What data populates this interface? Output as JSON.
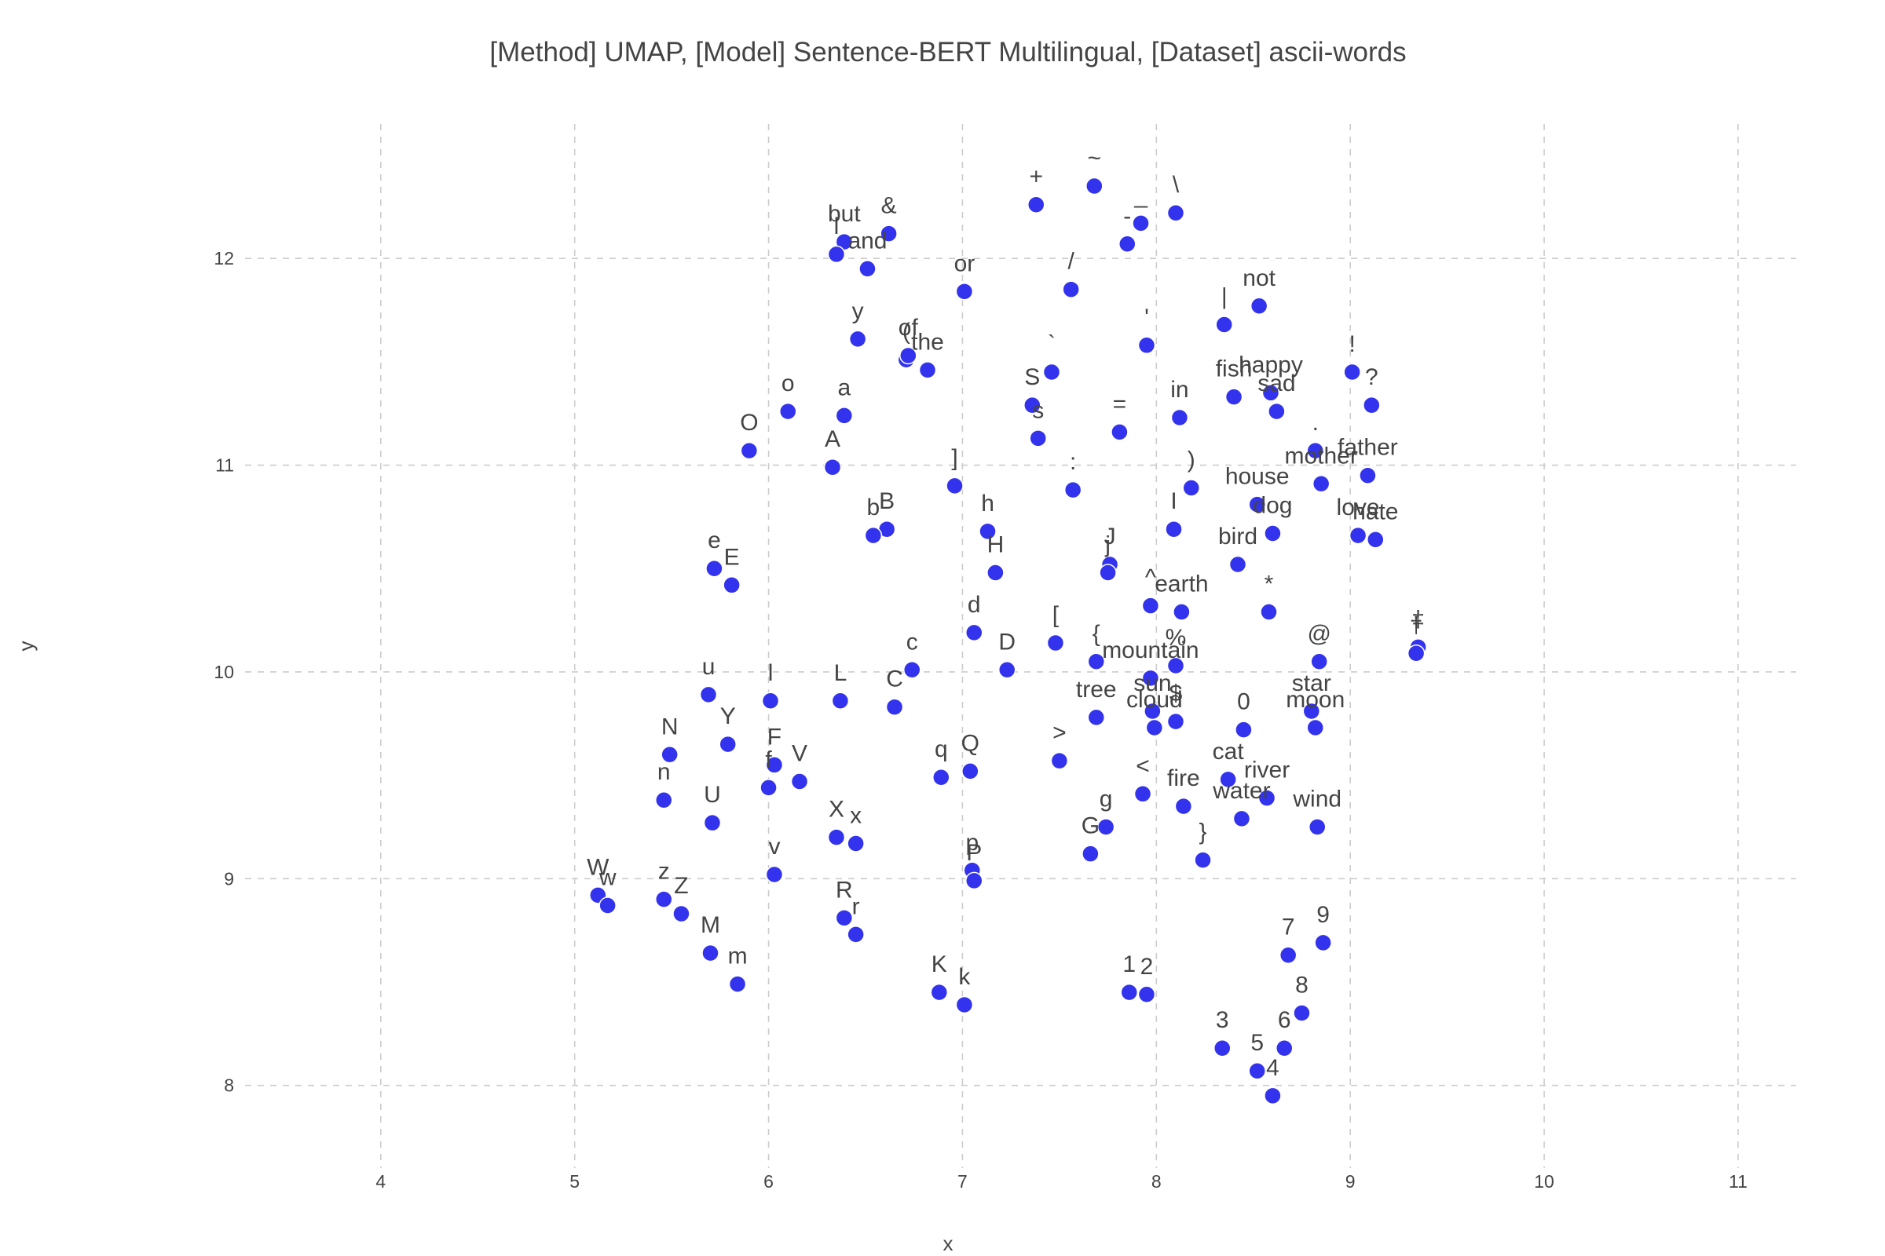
{
  "chart_data": {
    "type": "scatter",
    "title": "[Method] UMAP, [Model] Sentence-BERT Multilingual, [Dataset] ascii-words",
    "xlabel": "x",
    "ylabel": "y",
    "xlim": [
      3.3,
      11.3
    ],
    "ylim": [
      7.6,
      12.65
    ],
    "xticks": [
      4,
      5,
      6,
      7,
      8,
      9,
      10,
      11
    ],
    "yticks": [
      8,
      9,
      10,
      11,
      12
    ],
    "grid": true,
    "marker_color": "#3333ee",
    "points": [
      {
        "label": "~",
        "x": 7.68,
        "y": 12.35
      },
      {
        "label": "+",
        "x": 7.38,
        "y": 12.26
      },
      {
        "label": "\\",
        "x": 8.1,
        "y": 12.22
      },
      {
        "label": "_",
        "x": 7.92,
        "y": 12.17
      },
      {
        "label": "-",
        "x": 7.85,
        "y": 12.07
      },
      {
        "label": "&",
        "x": 6.62,
        "y": 12.12
      },
      {
        "label": "but",
        "x": 6.39,
        "y": 12.08
      },
      {
        "label": "l",
        "x": 6.35,
        "y": 12.02
      },
      {
        "label": "and",
        "x": 6.51,
        "y": 11.95
      },
      {
        "label": "/",
        "x": 7.56,
        "y": 11.85
      },
      {
        "label": "or",
        "x": 7.01,
        "y": 11.84
      },
      {
        "label": "not",
        "x": 8.53,
        "y": 11.77
      },
      {
        "label": "|",
        "x": 8.35,
        "y": 11.68
      },
      {
        "label": "y",
        "x": 6.46,
        "y": 11.61
      },
      {
        "label": "'",
        "x": 7.95,
        "y": 11.58
      },
      {
        "label": "(",
        "x": 6.71,
        "y": 11.51
      },
      {
        "label": "of",
        "x": 6.72,
        "y": 11.53
      },
      {
        "label": "the",
        "x": 6.82,
        "y": 11.46
      },
      {
        "label": "`",
        "x": 7.46,
        "y": 11.45
      },
      {
        "label": "!",
        "x": 9.01,
        "y": 11.45
      },
      {
        "label": "happy",
        "x": 8.59,
        "y": 11.35
      },
      {
        "label": "fish",
        "x": 8.4,
        "y": 11.33
      },
      {
        "label": "?",
        "x": 9.11,
        "y": 11.29
      },
      {
        "label": "S",
        "x": 7.36,
        "y": 11.29
      },
      {
        "label": "o",
        "x": 6.1,
        "y": 11.26
      },
      {
        "label": "sad",
        "x": 8.62,
        "y": 11.26
      },
      {
        "label": "a",
        "x": 6.39,
        "y": 11.24
      },
      {
        "label": "in",
        "x": 8.12,
        "y": 11.23
      },
      {
        "label": "=",
        "x": 7.81,
        "y": 11.16
      },
      {
        "label": "s",
        "x": 7.39,
        "y": 11.13
      },
      {
        "label": "O",
        "x": 5.9,
        "y": 11.07
      },
      {
        "label": ".",
        "x": 8.82,
        "y": 11.07
      },
      {
        "label": "A",
        "x": 6.33,
        "y": 10.99
      },
      {
        "label": "father",
        "x": 9.09,
        "y": 10.95
      },
      {
        "label": "mother",
        "x": 8.85,
        "y": 10.91
      },
      {
        "label": "]",
        "x": 6.96,
        "y": 10.9
      },
      {
        "label": ")",
        "x": 8.18,
        "y": 10.89
      },
      {
        "label": ":",
        "x": 7.57,
        "y": 10.88
      },
      {
        "label": "house",
        "x": 8.52,
        "y": 10.81
      },
      {
        "label": "I",
        "x": 8.09,
        "y": 10.69
      },
      {
        "label": "B",
        "x": 6.61,
        "y": 10.69
      },
      {
        "label": "h",
        "x": 7.13,
        "y": 10.68
      },
      {
        "label": "dog",
        "x": 8.6,
        "y": 10.67
      },
      {
        "label": "love",
        "x": 9.04,
        "y": 10.66
      },
      {
        "label": "b",
        "x": 6.54,
        "y": 10.66
      },
      {
        "label": "hate",
        "x": 9.13,
        "y": 10.64
      },
      {
        "label": "J",
        "x": 7.76,
        "y": 10.52
      },
      {
        "label": "bird",
        "x": 8.42,
        "y": 10.52
      },
      {
        "label": "e",
        "x": 5.72,
        "y": 10.5
      },
      {
        "label": "j",
        "x": 7.75,
        "y": 10.48
      },
      {
        "label": "H",
        "x": 7.17,
        "y": 10.48
      },
      {
        "label": "E",
        "x": 5.81,
        "y": 10.42
      },
      {
        "label": "^",
        "x": 7.97,
        "y": 10.32
      },
      {
        "label": "earth",
        "x": 8.13,
        "y": 10.29
      },
      {
        "label": "*",
        "x": 8.58,
        "y": 10.29
      },
      {
        "label": "d",
        "x": 7.06,
        "y": 10.19
      },
      {
        "label": "‡",
        "x": 9.35,
        "y": 10.12
      },
      {
        "label": "[",
        "x": 7.48,
        "y": 10.14
      },
      {
        "label": "†",
        "x": 9.34,
        "y": 10.09
      },
      {
        "label": "@",
        "x": 8.84,
        "y": 10.05
      },
      {
        "label": "{",
        "x": 7.69,
        "y": 10.05
      },
      {
        "label": "%",
        "x": 8.1,
        "y": 10.03
      },
      {
        "label": "c",
        "x": 6.74,
        "y": 10.01
      },
      {
        "label": "D",
        "x": 7.23,
        "y": 10.01
      },
      {
        "label": "mountain",
        "x": 7.97,
        "y": 9.97
      },
      {
        "label": "u",
        "x": 5.69,
        "y": 9.89
      },
      {
        "label": "l",
        "x": 6.01,
        "y": 9.86
      },
      {
        "label": "L",
        "x": 6.37,
        "y": 9.86
      },
      {
        "label": "C",
        "x": 6.65,
        "y": 9.83
      },
      {
        "label": "sun",
        "x": 7.98,
        "y": 9.81
      },
      {
        "label": "star",
        "x": 8.8,
        "y": 9.81
      },
      {
        "label": "tree",
        "x": 7.69,
        "y": 9.78
      },
      {
        "label": "$",
        "x": 8.1,
        "y": 9.76
      },
      {
        "label": "cloud",
        "x": 7.99,
        "y": 9.73
      },
      {
        "label": "0",
        "x": 8.45,
        "y": 9.72
      },
      {
        "label": "moon",
        "x": 8.82,
        "y": 9.73
      },
      {
        "label": "Y",
        "x": 5.79,
        "y": 9.65
      },
      {
        "label": "N",
        "x": 5.49,
        "y": 9.6
      },
      {
        "label": ">",
        "x": 7.5,
        "y": 9.57
      },
      {
        "label": "F",
        "x": 6.03,
        "y": 9.55
      },
      {
        "label": "Q",
        "x": 7.04,
        "y": 9.52
      },
      {
        "label": "q",
        "x": 6.89,
        "y": 9.49
      },
      {
        "label": "V",
        "x": 6.16,
        "y": 9.47
      },
      {
        "label": "cat",
        "x": 8.37,
        "y": 9.48
      },
      {
        "label": "f",
        "x": 6.0,
        "y": 9.44
      },
      {
        "label": "<",
        "x": 7.93,
        "y": 9.41
      },
      {
        "label": "river",
        "x": 8.57,
        "y": 9.39
      },
      {
        "label": "n",
        "x": 5.46,
        "y": 9.38
      },
      {
        "label": "fire",
        "x": 8.14,
        "y": 9.35
      },
      {
        "label": "water",
        "x": 8.44,
        "y": 9.29
      },
      {
        "label": "U",
        "x": 5.71,
        "y": 9.27
      },
      {
        "label": "g",
        "x": 7.74,
        "y": 9.25
      },
      {
        "label": "wind",
        "x": 8.83,
        "y": 9.25
      },
      {
        "label": "X",
        "x": 6.35,
        "y": 9.2
      },
      {
        "label": "x",
        "x": 6.45,
        "y": 9.17
      },
      {
        "label": "G",
        "x": 7.66,
        "y": 9.12
      },
      {
        "label": "}",
        "x": 8.24,
        "y": 9.09
      },
      {
        "label": "p",
        "x": 7.05,
        "y": 9.04
      },
      {
        "label": "v",
        "x": 6.03,
        "y": 9.02
      },
      {
        "label": "P",
        "x": 7.06,
        "y": 8.99
      },
      {
        "label": "W",
        "x": 5.12,
        "y": 8.92
      },
      {
        "label": "z",
        "x": 5.46,
        "y": 8.9
      },
      {
        "label": "w",
        "x": 5.17,
        "y": 8.87
      },
      {
        "label": "Z",
        "x": 5.55,
        "y": 8.83
      },
      {
        "label": "R",
        "x": 6.39,
        "y": 8.81
      },
      {
        "label": "r",
        "x": 6.45,
        "y": 8.73
      },
      {
        "label": "9",
        "x": 8.86,
        "y": 8.69
      },
      {
        "label": "M",
        "x": 5.7,
        "y": 8.64
      },
      {
        "label": "7",
        "x": 8.68,
        "y": 8.63
      },
      {
        "label": "m",
        "x": 5.84,
        "y": 8.49
      },
      {
        "label": "1",
        "x": 7.86,
        "y": 8.45
      },
      {
        "label": "K",
        "x": 6.88,
        "y": 8.45
      },
      {
        "label": "2",
        "x": 7.95,
        "y": 8.44
      },
      {
        "label": "k",
        "x": 7.01,
        "y": 8.39
      },
      {
        "label": "8",
        "x": 8.75,
        "y": 8.35
      },
      {
        "label": "6",
        "x": 8.66,
        "y": 8.18
      },
      {
        "label": "3",
        "x": 8.34,
        "y": 8.18
      },
      {
        "label": "5",
        "x": 8.52,
        "y": 8.07
      },
      {
        "label": "4",
        "x": 8.6,
        "y": 7.95
      }
    ]
  }
}
